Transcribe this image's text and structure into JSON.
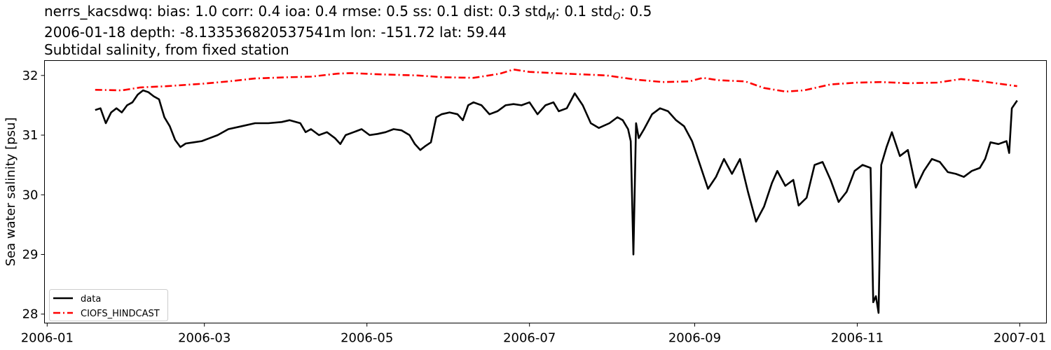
{
  "title_lines": {
    "line1": {
      "prefix": "nerrs_kacsdwq: bias: 1.0  corr: 0.4  ioa: 0.4  rmse: 0.5  ss: 0.1  dist: 0.3  std",
      "sub_m": "M",
      "mid": ": 0.1  std",
      "sub_o": "O",
      "suffix": ": 0.5"
    },
    "line2": "2006-01-18 depth: -8.133536820537541m lon: -151.72 lat: 59.44",
    "line3": "Subtidal salinity, from fixed station"
  },
  "chart_data": {
    "type": "line",
    "ylabel": "Sea water salinity [psu]",
    "xlabel": "",
    "xlim": [
      "2005-12-31",
      "2007-01-11"
    ],
    "ylim": [
      27.85,
      32.25
    ],
    "x_ticks": [
      "2006-01",
      "2006-03",
      "2006-05",
      "2006-07",
      "2006-09",
      "2006-11",
      "2007-01"
    ],
    "y_ticks": [
      28,
      29,
      30,
      31,
      32
    ],
    "legend_position": "lower-left",
    "grid": false,
    "series": [
      {
        "name": "data",
        "color": "#000000",
        "style": "solid",
        "points": [
          [
            "2006-01-19",
            31.42
          ],
          [
            "2006-01-21",
            31.45
          ],
          [
            "2006-01-23",
            31.2
          ],
          [
            "2006-01-25",
            31.38
          ],
          [
            "2006-01-27",
            31.45
          ],
          [
            "2006-01-29",
            31.38
          ],
          [
            "2006-01-31",
            31.5
          ],
          [
            "2006-02-02",
            31.55
          ],
          [
            "2006-02-04",
            31.68
          ],
          [
            "2006-02-06",
            31.75
          ],
          [
            "2006-02-08",
            31.72
          ],
          [
            "2006-02-10",
            31.65
          ],
          [
            "2006-02-12",
            31.6
          ],
          [
            "2006-02-14",
            31.3
          ],
          [
            "2006-02-16",
            31.15
          ],
          [
            "2006-02-18",
            30.92
          ],
          [
            "2006-02-20",
            30.8
          ],
          [
            "2006-02-22",
            30.86
          ],
          [
            "2006-02-25",
            30.88
          ],
          [
            "2006-02-28",
            30.9
          ],
          [
            "2006-03-03",
            30.95
          ],
          [
            "2006-03-06",
            31.0
          ],
          [
            "2006-03-10",
            31.1
          ],
          [
            "2006-03-15",
            31.15
          ],
          [
            "2006-03-20",
            31.2
          ],
          [
            "2006-03-25",
            31.2
          ],
          [
            "2006-03-30",
            31.22
          ],
          [
            "2006-04-02",
            31.25
          ],
          [
            "2006-04-06",
            31.2
          ],
          [
            "2006-04-08",
            31.05
          ],
          [
            "2006-04-10",
            31.1
          ],
          [
            "2006-04-13",
            31.0
          ],
          [
            "2006-04-16",
            31.05
          ],
          [
            "2006-04-19",
            30.95
          ],
          [
            "2006-04-21",
            30.85
          ],
          [
            "2006-04-23",
            31.0
          ],
          [
            "2006-04-26",
            31.05
          ],
          [
            "2006-04-29",
            31.1
          ],
          [
            "2006-05-02",
            31.0
          ],
          [
            "2006-05-05",
            31.02
          ],
          [
            "2006-05-08",
            31.05
          ],
          [
            "2006-05-11",
            31.1
          ],
          [
            "2006-05-14",
            31.08
          ],
          [
            "2006-05-17",
            31.0
          ],
          [
            "2006-05-19",
            30.85
          ],
          [
            "2006-05-21",
            30.75
          ],
          [
            "2006-05-23",
            30.82
          ],
          [
            "2006-05-25",
            30.88
          ],
          [
            "2006-05-27",
            31.3
          ],
          [
            "2006-05-29",
            31.35
          ],
          [
            "2006-06-01",
            31.38
          ],
          [
            "2006-06-04",
            31.35
          ],
          [
            "2006-06-06",
            31.25
          ],
          [
            "2006-06-08",
            31.5
          ],
          [
            "2006-06-10",
            31.55
          ],
          [
            "2006-06-13",
            31.5
          ],
          [
            "2006-06-16",
            31.35
          ],
          [
            "2006-06-19",
            31.4
          ],
          [
            "2006-06-22",
            31.5
          ],
          [
            "2006-06-25",
            31.52
          ],
          [
            "2006-06-28",
            31.5
          ],
          [
            "2006-07-01",
            31.55
          ],
          [
            "2006-07-04",
            31.35
          ],
          [
            "2006-07-07",
            31.5
          ],
          [
            "2006-07-10",
            31.55
          ],
          [
            "2006-07-12",
            31.4
          ],
          [
            "2006-07-15",
            31.45
          ],
          [
            "2006-07-18",
            31.7
          ],
          [
            "2006-07-21",
            31.5
          ],
          [
            "2006-07-24",
            31.2
          ],
          [
            "2006-07-27",
            31.12
          ],
          [
            "2006-07-31",
            31.2
          ],
          [
            "2006-08-03",
            31.3
          ],
          [
            "2006-08-05",
            31.25
          ],
          [
            "2006-08-07",
            31.1
          ],
          [
            "2006-08-08",
            30.9
          ],
          [
            "2006-08-09",
            29.0
          ],
          [
            "2006-08-10",
            31.2
          ],
          [
            "2006-08-11",
            30.95
          ],
          [
            "2006-08-13",
            31.1
          ],
          [
            "2006-08-16",
            31.35
          ],
          [
            "2006-08-19",
            31.45
          ],
          [
            "2006-08-22",
            31.4
          ],
          [
            "2006-08-25",
            31.25
          ],
          [
            "2006-08-28",
            31.15
          ],
          [
            "2006-08-31",
            30.9
          ],
          [
            "2006-09-03",
            30.5
          ],
          [
            "2006-09-06",
            30.1
          ],
          [
            "2006-09-09",
            30.3
          ],
          [
            "2006-09-12",
            30.6
          ],
          [
            "2006-09-15",
            30.35
          ],
          [
            "2006-09-18",
            30.6
          ],
          [
            "2006-09-21",
            30.05
          ],
          [
            "2006-09-24",
            29.55
          ],
          [
            "2006-09-27",
            29.8
          ],
          [
            "2006-09-30",
            30.2
          ],
          [
            "2006-10-02",
            30.4
          ],
          [
            "2006-10-05",
            30.15
          ],
          [
            "2006-10-08",
            30.25
          ],
          [
            "2006-10-10",
            29.82
          ],
          [
            "2006-10-13",
            29.95
          ],
          [
            "2006-10-16",
            30.5
          ],
          [
            "2006-10-19",
            30.55
          ],
          [
            "2006-10-22",
            30.25
          ],
          [
            "2006-10-25",
            29.88
          ],
          [
            "2006-10-28",
            30.05
          ],
          [
            "2006-10-31",
            30.4
          ],
          [
            "2006-11-03",
            30.5
          ],
          [
            "2006-11-06",
            30.45
          ],
          [
            "2006-11-07",
            28.2
          ],
          [
            "2006-11-08",
            28.3
          ],
          [
            "2006-11-09",
            28.02
          ],
          [
            "2006-11-10",
            30.5
          ],
          [
            "2006-11-12",
            30.8
          ],
          [
            "2006-11-14",
            31.05
          ],
          [
            "2006-11-17",
            30.65
          ],
          [
            "2006-11-20",
            30.75
          ],
          [
            "2006-11-23",
            30.12
          ],
          [
            "2006-11-26",
            30.4
          ],
          [
            "2006-11-29",
            30.6
          ],
          [
            "2006-12-02",
            30.55
          ],
          [
            "2006-12-05",
            30.38
          ],
          [
            "2006-12-08",
            30.35
          ],
          [
            "2006-12-11",
            30.3
          ],
          [
            "2006-12-14",
            30.4
          ],
          [
            "2006-12-17",
            30.45
          ],
          [
            "2006-12-19",
            30.6
          ],
          [
            "2006-12-21",
            30.88
          ],
          [
            "2006-12-24",
            30.85
          ],
          [
            "2006-12-27",
            30.9
          ],
          [
            "2006-12-28",
            30.7
          ],
          [
            "2006-12-29",
            31.45
          ],
          [
            "2006-12-31",
            31.58
          ]
        ]
      },
      {
        "name": "CIOFS_HINDCAST",
        "color": "#ff0000",
        "style": "dashdot",
        "points": [
          [
            "2006-01-19",
            31.76
          ],
          [
            "2006-01-29",
            31.75
          ],
          [
            "2006-02-05",
            31.8
          ],
          [
            "2006-02-15",
            31.82
          ],
          [
            "2006-02-28",
            31.86
          ],
          [
            "2006-03-10",
            31.9
          ],
          [
            "2006-03-20",
            31.95
          ],
          [
            "2006-04-01",
            31.97
          ],
          [
            "2006-04-10",
            31.98
          ],
          [
            "2006-04-20",
            32.03
          ],
          [
            "2006-04-25",
            32.04
          ],
          [
            "2006-05-05",
            32.02
          ],
          [
            "2006-05-20",
            32.0
          ],
          [
            "2006-05-30",
            31.97
          ],
          [
            "2006-06-10",
            31.96
          ],
          [
            "2006-06-20",
            32.03
          ],
          [
            "2006-06-25",
            32.1
          ],
          [
            "2006-07-01",
            32.06
          ],
          [
            "2006-07-10",
            32.04
          ],
          [
            "2006-07-20",
            32.02
          ],
          [
            "2006-07-30",
            32.0
          ],
          [
            "2006-08-10",
            31.93
          ],
          [
            "2006-08-20",
            31.89
          ],
          [
            "2006-08-30",
            31.9
          ],
          [
            "2006-09-04",
            31.96
          ],
          [
            "2006-09-10",
            31.92
          ],
          [
            "2006-09-20",
            31.9
          ],
          [
            "2006-09-27",
            31.79
          ],
          [
            "2006-10-05",
            31.73
          ],
          [
            "2006-10-12",
            31.75
          ],
          [
            "2006-10-22",
            31.85
          ],
          [
            "2006-11-01",
            31.88
          ],
          [
            "2006-11-10",
            31.89
          ],
          [
            "2006-11-20",
            31.87
          ],
          [
            "2006-12-01",
            31.88
          ],
          [
            "2006-12-10",
            31.94
          ],
          [
            "2006-12-18",
            31.9
          ],
          [
            "2006-12-31",
            31.82
          ]
        ]
      }
    ]
  }
}
